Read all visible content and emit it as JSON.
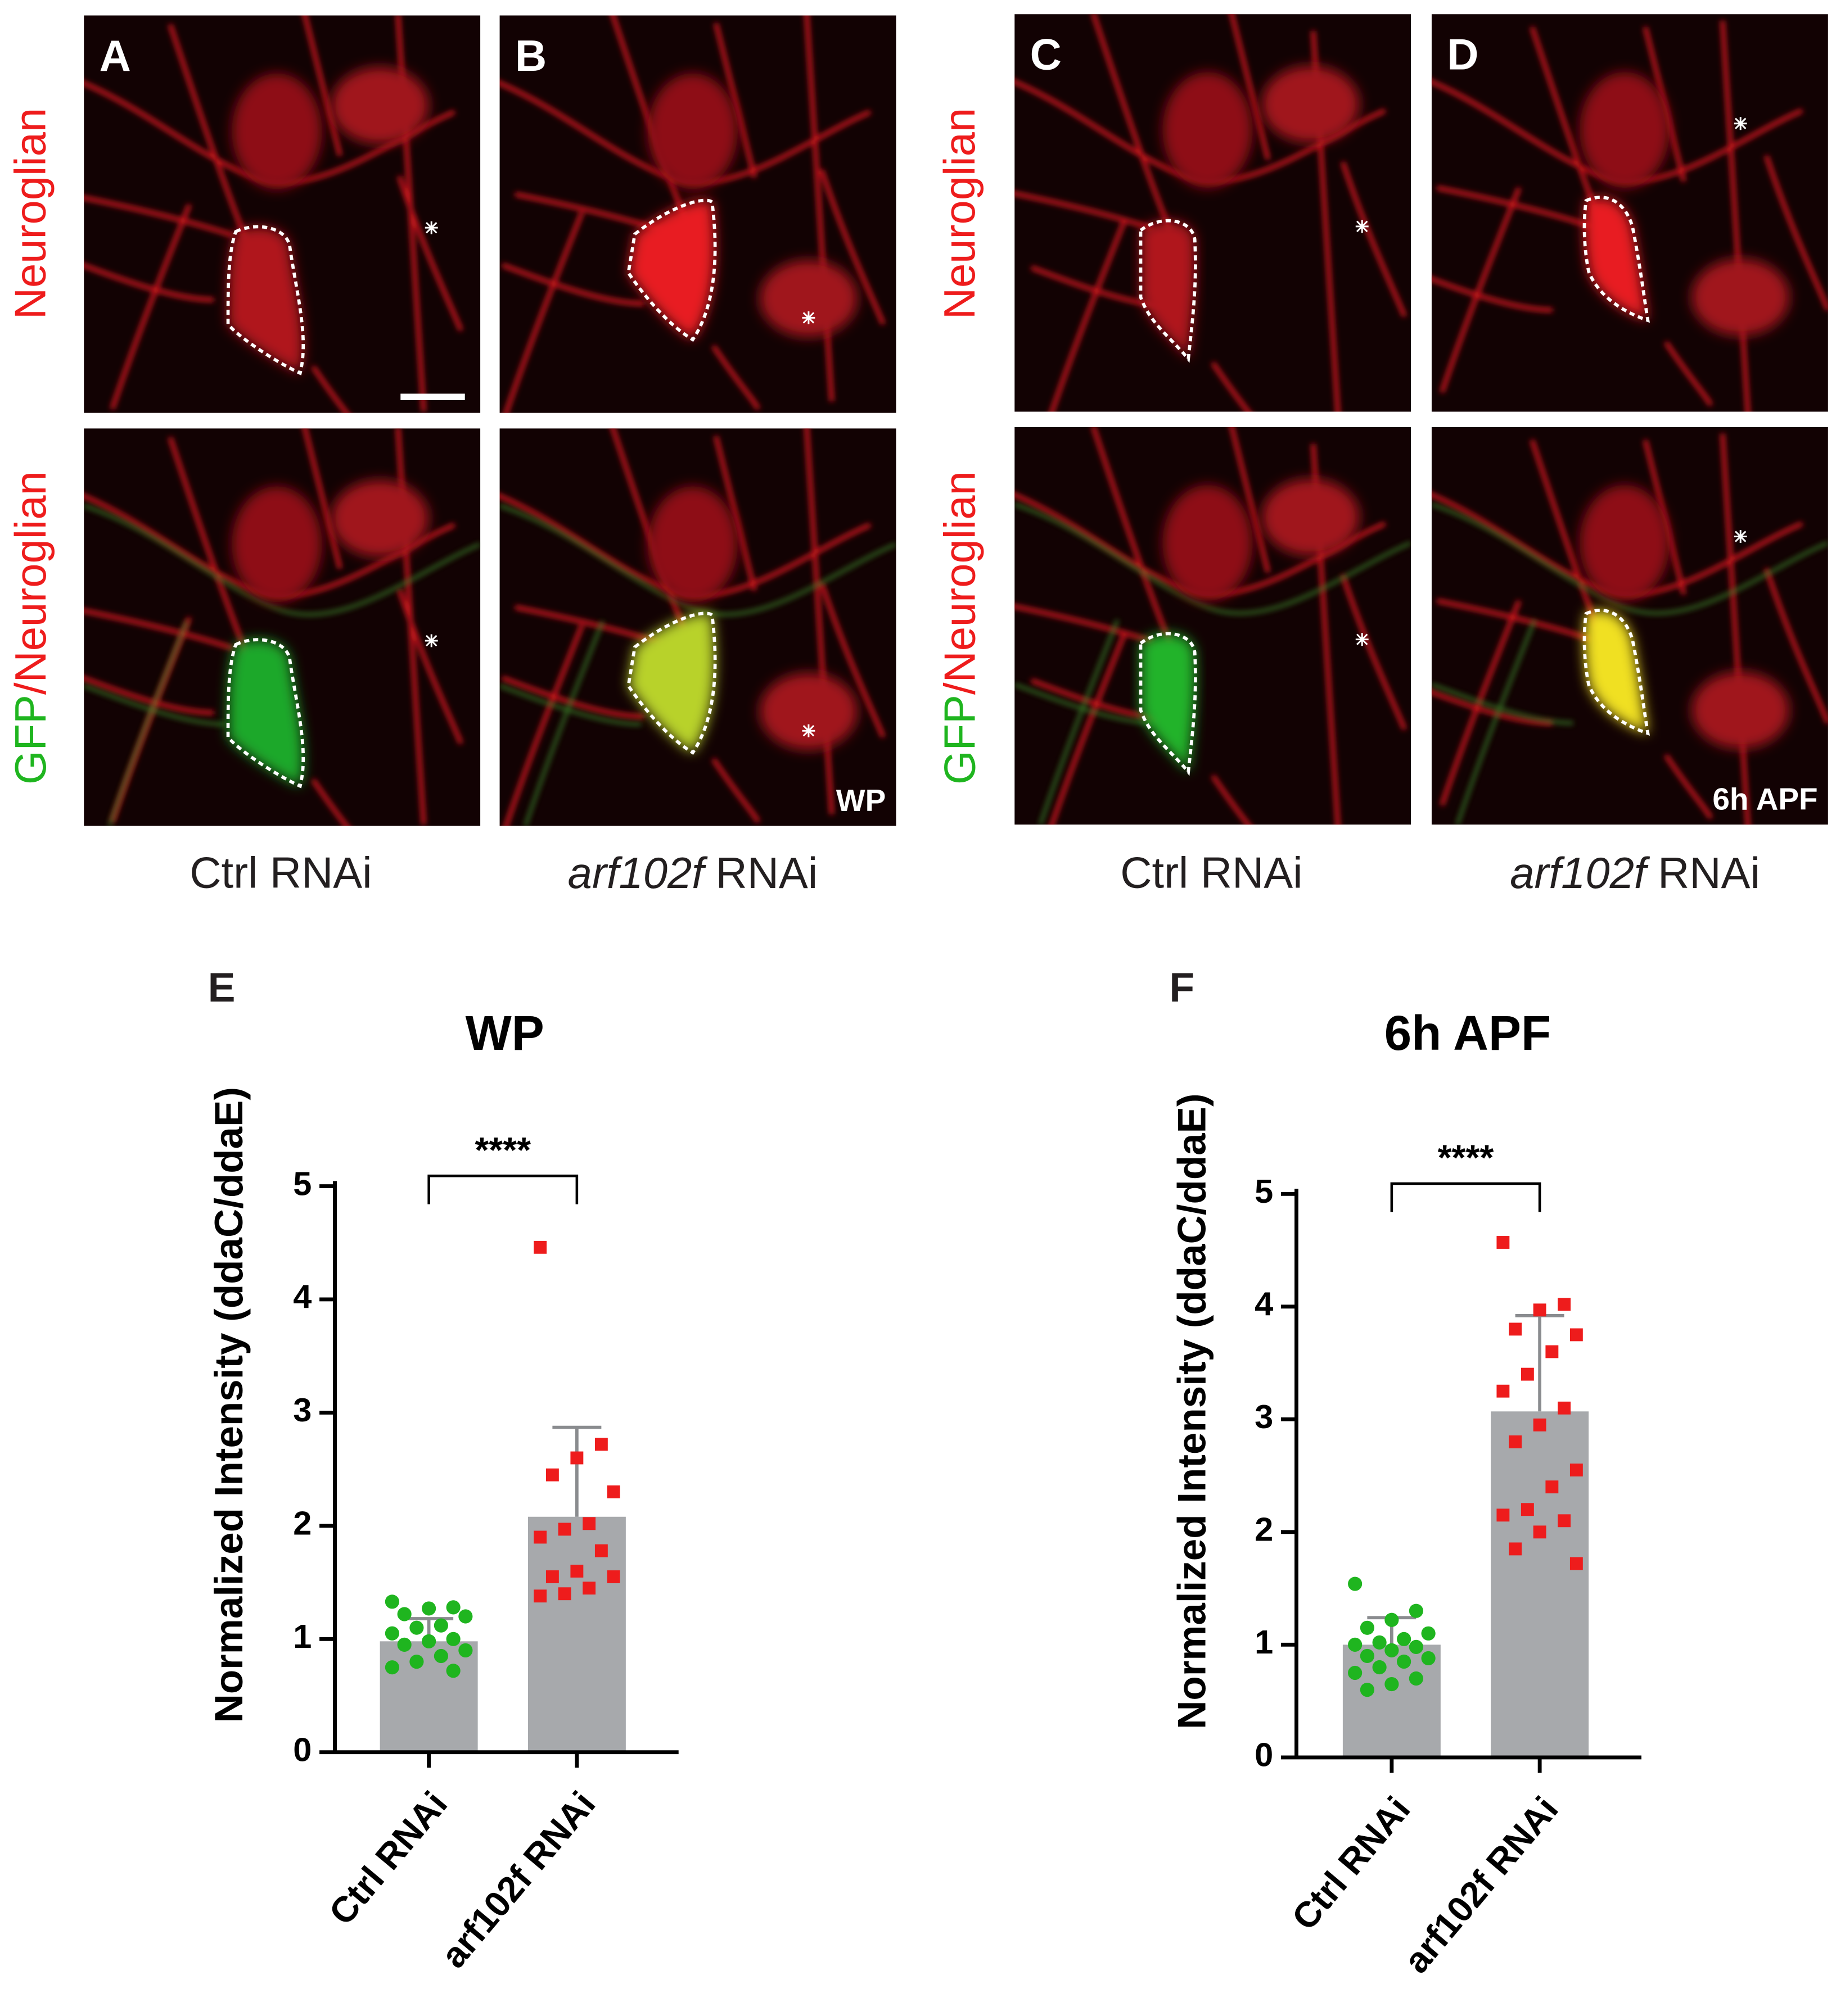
{
  "figure": {
    "panels": [
      {
        "letter": "A"
      },
      {
        "letter": "B",
        "annotation": "WP"
      },
      {
        "letter": "C"
      },
      {
        "letter": "D",
        "annotation": "6h APF"
      }
    ],
    "row_labels": {
      "top": "Neuroglian",
      "bottom_green": "GFP",
      "bottom_red": "/Neuroglian"
    },
    "conditions": [
      {
        "text": "Ctrl RNAi"
      },
      {
        "gene": "arf102f",
        "text": "RNAi"
      }
    ]
  },
  "chart_data": [
    {
      "type": "bar",
      "panel": "E",
      "title": "WP",
      "y_label": "Normalized Intensity (ddaC/ddaE)",
      "categories": [
        "Ctrl RNAi",
        "arf102f RNAi"
      ],
      "values": [
        0.98,
        2.08
      ],
      "errors": [
        0.2,
        0.79
      ],
      "color": "#a7a9ac",
      "point_colors": [
        "#1fb51f",
        "#ee1c1c"
      ],
      "points": [
        [
          1.33,
          1.28,
          1.27,
          1.22,
          1.2,
          1.12,
          1.1,
          1.05,
          1.0,
          0.98,
          0.95,
          0.9,
          0.85,
          0.8,
          0.75,
          0.72
        ],
        [
          4.46,
          2.72,
          2.6,
          2.45,
          2.3,
          2.02,
          1.97,
          1.9,
          1.78,
          1.6,
          1.55,
          1.55,
          1.45,
          1.4,
          1.38
        ]
      ],
      "ylim": [
        0,
        5
      ],
      "yticks": [
        0,
        1,
        2,
        3,
        4,
        5
      ],
      "significance": "****"
    },
    {
      "type": "bar",
      "panel": "F",
      "title": "6h APF",
      "y_label": "Normalized Intensity (ddaC/ddaE)",
      "categories": [
        "Ctrl RNAi",
        "arf102f RNAi"
      ],
      "values": [
        1.0,
        3.07
      ],
      "errors": [
        0.24,
        0.85
      ],
      "color": "#a7a9ac",
      "point_colors": [
        "#1fb51f",
        "#ee1c1c"
      ],
      "points": [
        [
          1.54,
          1.3,
          1.22,
          1.15,
          1.1,
          1.05,
          1.02,
          1.0,
          0.98,
          0.95,
          0.9,
          0.88,
          0.85,
          0.8,
          0.75,
          0.7,
          0.65,
          0.6
        ],
        [
          4.57,
          4.02,
          3.97,
          3.8,
          3.75,
          3.6,
          3.4,
          3.25,
          3.1,
          2.95,
          2.8,
          2.55,
          2.4,
          2.2,
          2.15,
          2.1,
          2.0,
          1.85,
          1.72
        ]
      ],
      "ylim": [
        0,
        5
      ],
      "yticks": [
        0,
        1,
        2,
        3,
        4,
        5
      ],
      "significance": "****"
    }
  ]
}
